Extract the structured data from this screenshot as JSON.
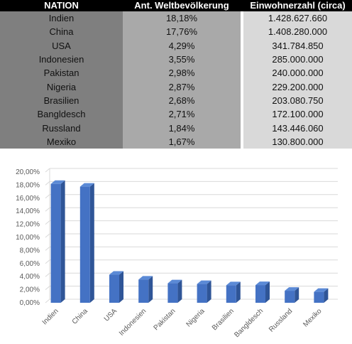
{
  "table": {
    "headers": [
      "NATION",
      "Ant. Weltbevölkerung",
      "Einwohnerzahl (circa)"
    ],
    "rows": [
      [
        "Indien",
        "18,18%",
        "1.428.627.660"
      ],
      [
        "China",
        "17,76%",
        "1.408.280.000"
      ],
      [
        "USA",
        "4,29%",
        "341.784.850"
      ],
      [
        "Indonesien",
        "3,55%",
        "285.000.000"
      ],
      [
        "Pakistan",
        "2,98%",
        "240.000.000"
      ],
      [
        "Nigeria",
        "2,87%",
        "229.200.000"
      ],
      [
        "Brasilien",
        "2,68%",
        "203.080.750"
      ],
      [
        "Bangldesch",
        "2,71%",
        "172.100.000"
      ],
      [
        "Russland",
        "1,84%",
        "143.446.060"
      ],
      [
        "Mexiko",
        "1,67%",
        "130.800.000"
      ]
    ]
  },
  "chart_data": {
    "type": "bar",
    "categories": [
      "Indien",
      "China",
      "USA",
      "Indonesien",
      "Pakistan",
      "Nigeria",
      "Brasilien",
      "Bangldesch",
      "Russland",
      "Mexiko"
    ],
    "values": [
      18.18,
      17.76,
      4.29,
      3.55,
      2.98,
      2.87,
      2.68,
      2.71,
      1.84,
      1.67
    ],
    "ylim": [
      0,
      20
    ],
    "yticks": [
      "0,00%",
      "2,00%",
      "4,00%",
      "6,00%",
      "8,00%",
      "10,00%",
      "12,00%",
      "14,00%",
      "16,00%",
      "18,00%",
      "20,00%"
    ],
    "grid": true,
    "bar_color": "#4472c4",
    "bar_side_color": "#2f5597",
    "bar_top_color": "#5b8ad6"
  }
}
